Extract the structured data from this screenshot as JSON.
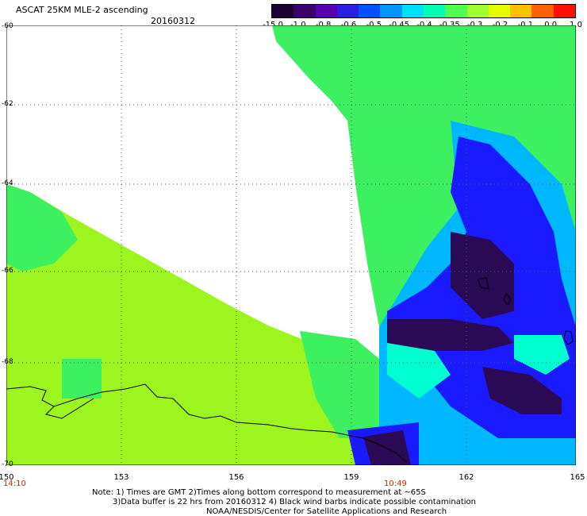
{
  "header": {
    "title": "ASCAT 25KM MLE-2 ascending",
    "date": "20160312"
  },
  "colorbar": {
    "labels": [
      "-15.0",
      "-1.0",
      "-0.8",
      "-0.6",
      "-0.5",
      "-0.45",
      "-0.4",
      "-0.35",
      "-0.3",
      "-0.2",
      "-0.1",
      "0.0",
      "1.0"
    ],
    "colors": [
      "#1a0033",
      "#3d006b",
      "#5a00b4",
      "#2a1ee0",
      "#0050ff",
      "#0096ff",
      "#00e0ff",
      "#00ffb4",
      "#50ff50",
      "#a0ff30",
      "#e6ff00",
      "#ffc000",
      "#ff6000",
      "#ff1000"
    ]
  },
  "map": {
    "lat_labels": [
      "-60",
      "-62",
      "-64",
      "-66",
      "-68",
      "-70"
    ],
    "lon_labels": [
      "150",
      "153",
      "156",
      "159",
      "162",
      "165"
    ],
    "time_labels": [
      "14:10",
      "10:49"
    ],
    "colors": {
      "dark": "#2a0a55",
      "blue": "#1a1aff",
      "lightblue": "#00b8ff",
      "cyan": "#00ffd0",
      "green": "#3cf060",
      "lime": "#9cf51e",
      "coast": "#000000"
    }
  },
  "notes": {
    "line1": "Note: 1) Times are GMT 2)Times along bottom correspond to measurement at ~65S",
    "line2": "3)Data buffer is 22 hrs from 20160312 4) Black wind barbs indicate possible contamination",
    "line3": "NOAA/NESDIS/Center for Satellite Applications and Research"
  }
}
